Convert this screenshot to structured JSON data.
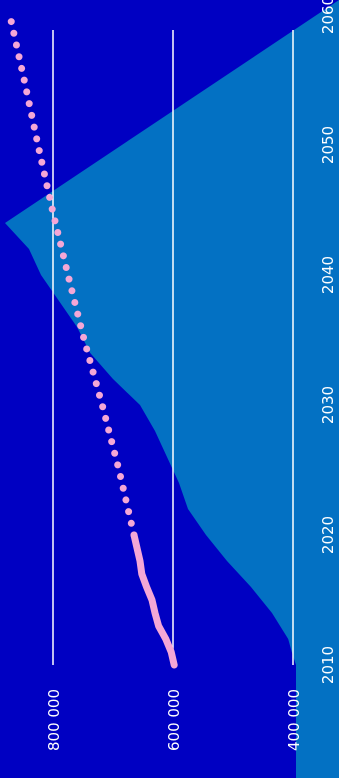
{
  "chart_data": {
    "type": "line",
    "orientation": "rotated-90-clockwise",
    "title": "",
    "xlabel": "",
    "ylabel": "",
    "x_ticks": [
      "2010",
      "2020",
      "2030",
      "2040",
      "2050",
      "2060"
    ],
    "y_ticks": [
      "400 000",
      "600 000",
      "800 000"
    ],
    "xlim": [
      2010,
      2060
    ],
    "ylim": [
      370000,
      880000
    ],
    "grid": true,
    "colors": {
      "background": "#0000c2",
      "region": "#0371c3",
      "grid": "#ffffff",
      "series": "#f4a7d6",
      "text": "#ffffff"
    },
    "region_boundary": {
      "x": [
        2010,
        2011,
        2012,
        2014,
        2016,
        2018,
        2020,
        2022,
        2024,
        2026,
        2028,
        2030,
        2032,
        2034,
        2036,
        2038,
        2040,
        2042,
        2044
      ],
      "y": [
        395000,
        402000,
        408000,
        435000,
        470000,
        510000,
        545000,
        575000,
        590000,
        610000,
        630000,
        655000,
        700000,
        738000,
        760000,
        790000,
        820000,
        840000,
        880000
      ]
    },
    "series": [
      {
        "style": "solid",
        "x": [
          2010,
          2011,
          2012,
          2013,
          2014,
          2015,
          2016,
          2017,
          2018,
          2019,
          2020
        ],
        "y": [
          598000,
          603000,
          612000,
          624000,
          630000,
          635000,
          644000,
          652000,
          655000,
          660000,
          665000
        ]
      },
      {
        "style": "dotted",
        "x": [
          2020,
          2025,
          2030,
          2035,
          2040,
          2045,
          2050,
          2055,
          2060
        ],
        "y": [
          665000,
          690000,
          718000,
          748000,
          775000,
          801000,
          825000,
          848000,
          872000
        ]
      }
    ]
  }
}
